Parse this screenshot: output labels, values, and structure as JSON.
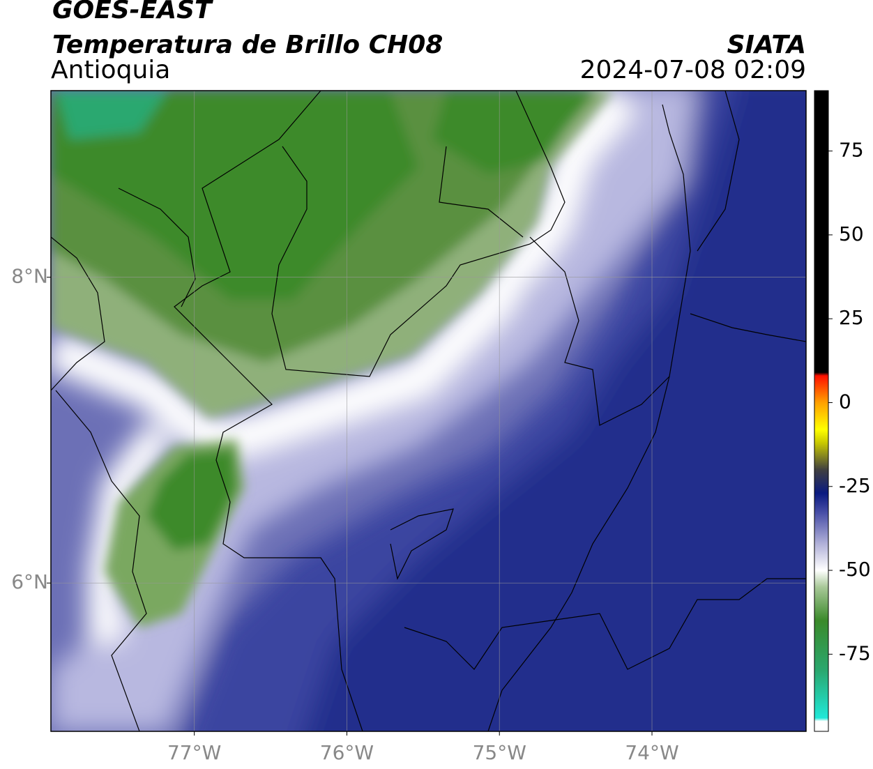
{
  "header": {
    "line1": "GOES-EAST",
    "title": "Temperatura de Brillo CH08",
    "region": "Antioquia",
    "source": "SIATA",
    "datetime": "2024-07-08 02:09"
  },
  "map": {
    "xlim": [
      -77.94,
      -72.99
    ],
    "ylim": [
      5.03,
      9.22
    ],
    "grid": true,
    "xticks": [
      {
        "value": -77,
        "label": "77°W"
      },
      {
        "value": -76,
        "label": "76°W"
      },
      {
        "value": -75,
        "label": "75°W"
      },
      {
        "value": -74,
        "label": "74°W"
      }
    ],
    "yticks": [
      {
        "value": 8,
        "label": "8°N"
      },
      {
        "value": 6,
        "label": "6°N"
      }
    ]
  },
  "colorbar": {
    "range": [
      -98,
      93
    ],
    "ticks": [
      75,
      50,
      25,
      0,
      -25,
      -50,
      -75
    ],
    "stops": [
      {
        "value": -98,
        "color": "#ffffff"
      },
      {
        "value": -95,
        "color": "#ffffff"
      },
      {
        "value": -94,
        "color": "#20e8d8"
      },
      {
        "value": -80,
        "color": "#2aa870"
      },
      {
        "value": -65,
        "color": "#3a8a2a"
      },
      {
        "value": -55,
        "color": "#a8c898"
      },
      {
        "value": -50,
        "color": "#ffffff"
      },
      {
        "value": -42,
        "color": "#b0b0d8"
      },
      {
        "value": -33,
        "color": "#4a50a8"
      },
      {
        "value": -27,
        "color": "#0a1a80"
      },
      {
        "value": -20,
        "color": "#404040"
      },
      {
        "value": -12,
        "color": "#c8c800"
      },
      {
        "value": -8,
        "color": "#ffff00"
      },
      {
        "value": 0,
        "color": "#ffa000"
      },
      {
        "value": 8,
        "color": "#ff1000"
      },
      {
        "value": 9,
        "color": "#000000"
      },
      {
        "value": 93,
        "color": "#000000"
      }
    ]
  }
}
